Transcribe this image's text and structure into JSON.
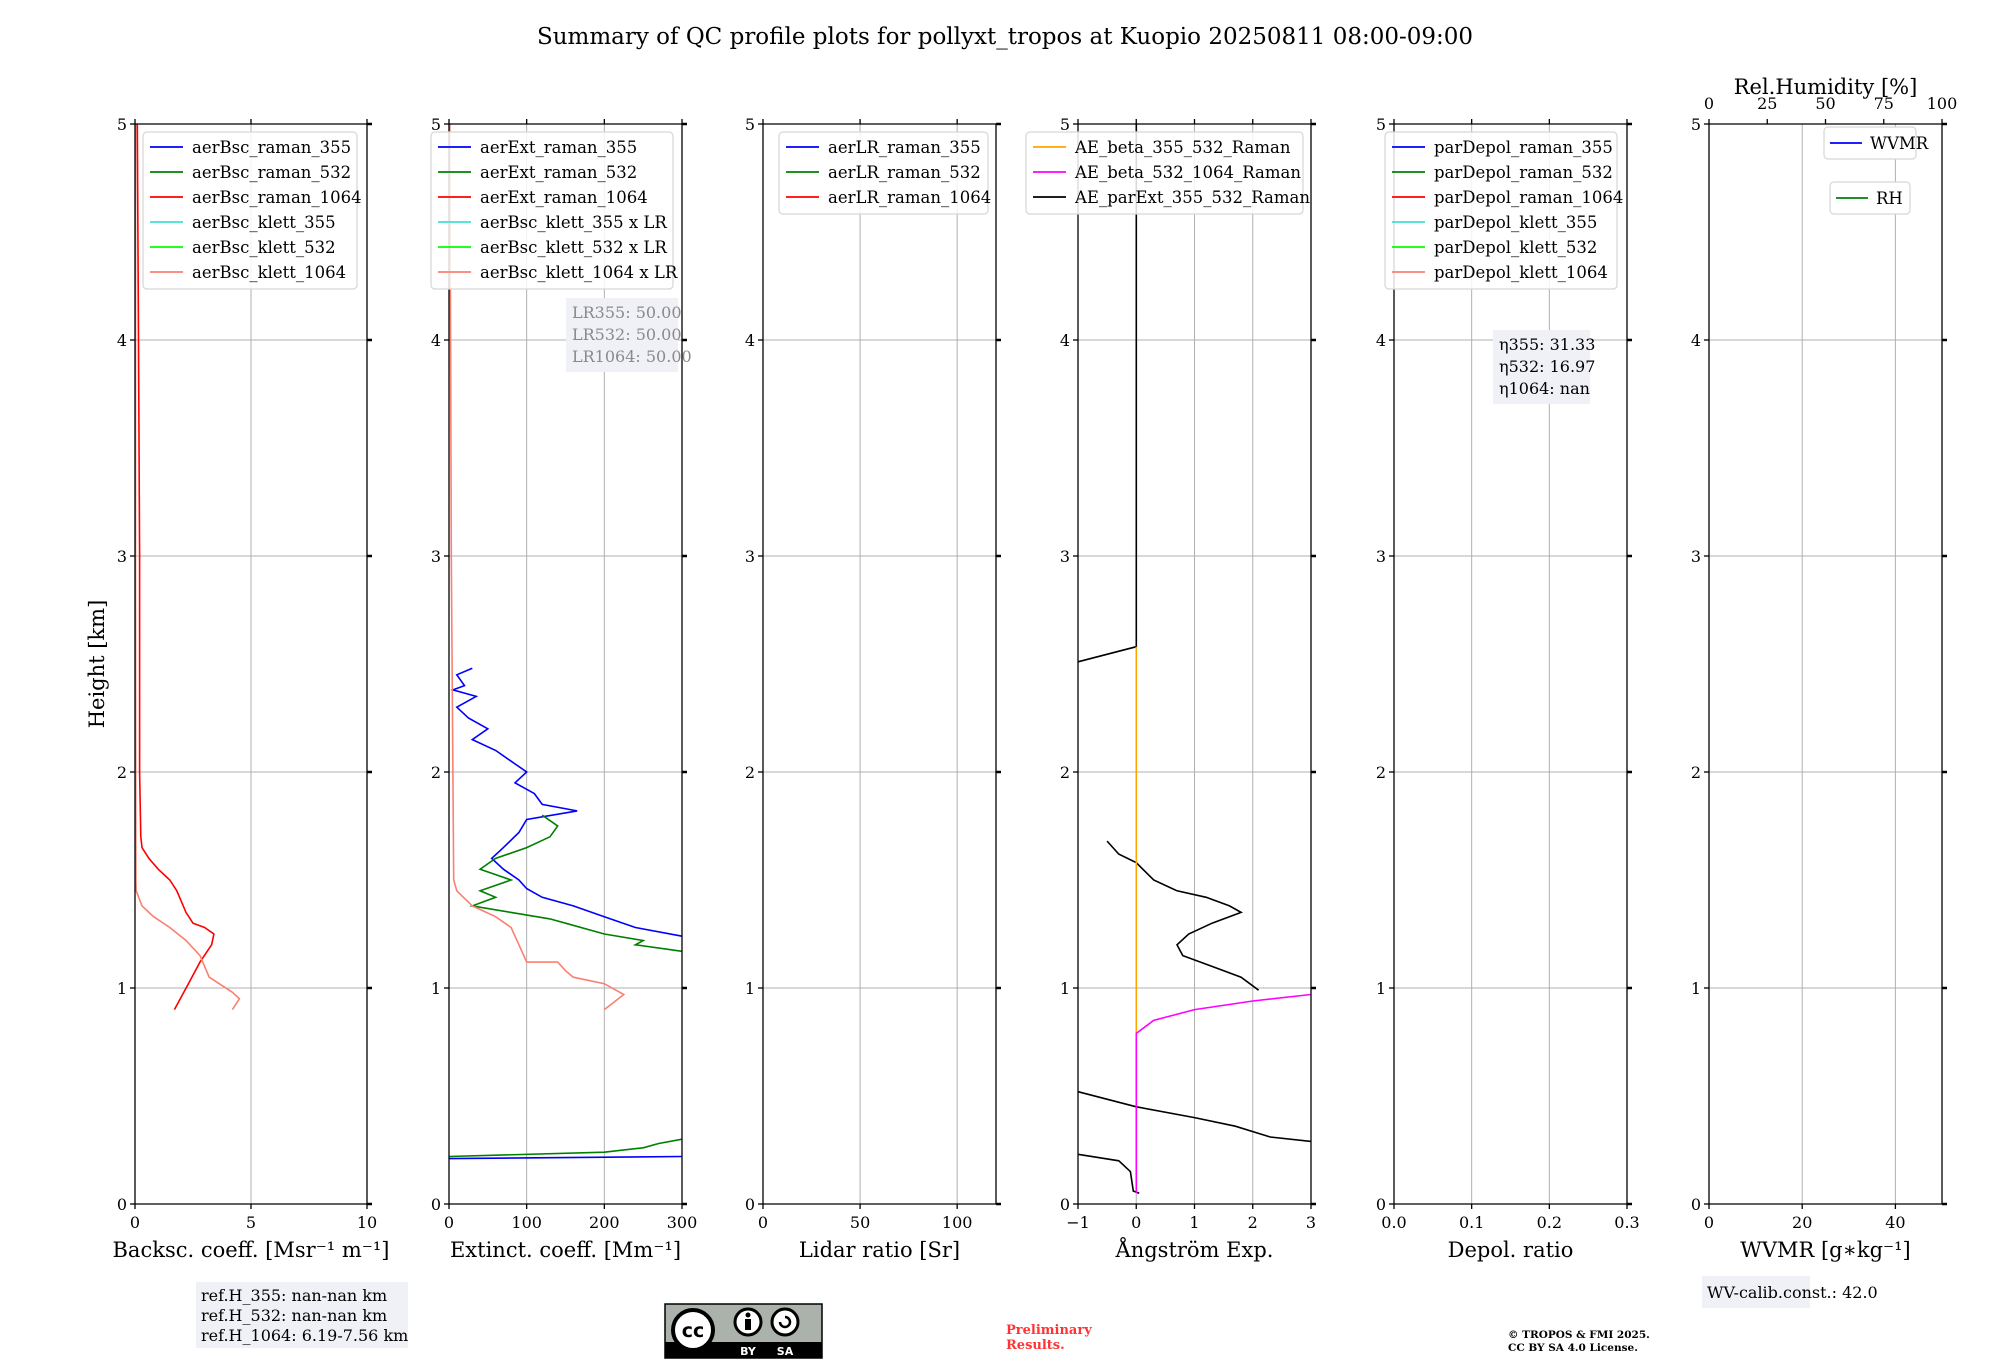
{
  "title": "Summary of QC profile plots for pollyxt_tropos at Kuopio 20250811 08:00-09:00",
  "ylabel": "Height [km]",
  "chart_data": [
    {
      "type": "line",
      "xlabel": "Backsc. coeff. [Msr⁻¹ m⁻¹]",
      "xlim": [
        0,
        10
      ],
      "ylim": [
        0,
        5
      ],
      "xticks": [
        0,
        5,
        10
      ],
      "xtick_labels": [
        "0",
        "5",
        "10"
      ],
      "yticks": [
        0,
        1,
        2,
        3,
        4,
        5
      ],
      "ytick_labels": [
        "0",
        "1",
        "2",
        "3",
        "4",
        "5"
      ],
      "grid": true,
      "legend": [
        {
          "label": "aerBsc_raman_355",
          "color": "#0000ff"
        },
        {
          "label": "aerBsc_raman_532",
          "color": "#008000"
        },
        {
          "label": "aerBsc_raman_1064",
          "color": "#ff0000"
        },
        {
          "label": "aerBsc_klett_355",
          "color": "#40e0d0"
        },
        {
          "label": "aerBsc_klett_532",
          "color": "#00ff00"
        },
        {
          "label": "aerBsc_klett_1064",
          "color": "#fa8072"
        }
      ],
      "series": [
        {
          "name": "aerBsc_raman_1064",
          "color": "#ff0000",
          "points": [
            [
              0.1,
              5
            ],
            [
              0.15,
              4
            ],
            [
              0.2,
              3
            ],
            [
              0.2,
              2
            ],
            [
              0.25,
              1.7
            ],
            [
              0.3,
              1.65
            ],
            [
              0.6,
              1.6
            ],
            [
              1.0,
              1.55
            ],
            [
              1.5,
              1.5
            ],
            [
              1.8,
              1.45
            ],
            [
              2.0,
              1.4
            ],
            [
              2.2,
              1.35
            ],
            [
              2.5,
              1.3
            ],
            [
              3.0,
              1.28
            ],
            [
              3.4,
              1.25
            ],
            [
              3.3,
              1.2
            ],
            [
              2.8,
              1.12
            ],
            [
              2.3,
              1.02
            ],
            [
              1.7,
              0.9
            ]
          ]
        },
        {
          "name": "aerBsc_klett_1064",
          "color": "#fa8072",
          "points": [
            [
              0.02,
              5
            ],
            [
              0.02,
              3
            ],
            [
              0.03,
              2
            ],
            [
              0.04,
              1.5
            ],
            [
              0.05,
              1.45
            ],
            [
              0.3,
              1.38
            ],
            [
              0.8,
              1.33
            ],
            [
              1.5,
              1.28
            ],
            [
              2.2,
              1.22
            ],
            [
              2.8,
              1.15
            ],
            [
              3.2,
              1.05
            ],
            [
              4.2,
              0.98
            ],
            [
              4.5,
              0.95
            ],
            [
              4.2,
              0.9
            ]
          ]
        }
      ]
    },
    {
      "type": "line",
      "xlabel": "Extinct. coeff. [Mm⁻¹]",
      "xlim": [
        0,
        300
      ],
      "ylim": [
        0,
        5
      ],
      "xticks": [
        0,
        100,
        200,
        300
      ],
      "xtick_labels": [
        "0",
        "100",
        "200",
        "300"
      ],
      "yticks": [
        0,
        1,
        2,
        3,
        4,
        5
      ],
      "ytick_labels": [
        "0",
        "1",
        "2",
        "3",
        "4",
        "5"
      ],
      "grid": true,
      "legend": [
        {
          "label": "aerExt_raman_355",
          "color": "#0000ff"
        },
        {
          "label": "aerExt_raman_532",
          "color": "#008000"
        },
        {
          "label": "aerExt_raman_1064",
          "color": "#ff0000"
        },
        {
          "label": "aerBsc_klett_355 x LR",
          "color": "#40e0d0"
        },
        {
          "label": "aerBsc_klett_532 x LR",
          "color": "#00ff00"
        },
        {
          "label": "aerBsc_klett_1064 x LR",
          "color": "#fa8072"
        }
      ],
      "annotation": [
        "LR355: 50.00",
        "LR532: 50.00",
        "LR1064: 50.00"
      ],
      "series": [
        {
          "name": "aerExt_raman_355",
          "color": "#0000ff",
          "points": [
            [
              30,
              2.48
            ],
            [
              10,
              2.45
            ],
            [
              20,
              2.4
            ],
            [
              5,
              2.38
            ],
            [
              35,
              2.35
            ],
            [
              10,
              2.3
            ],
            [
              25,
              2.25
            ],
            [
              50,
              2.2
            ],
            [
              30,
              2.15
            ],
            [
              60,
              2.1
            ],
            [
              80,
              2.05
            ],
            [
              100,
              2.0
            ],
            [
              85,
              1.95
            ],
            [
              110,
              1.9
            ],
            [
              120,
              1.85
            ],
            [
              165,
              1.82
            ],
            [
              100,
              1.78
            ],
            [
              90,
              1.72
            ],
            [
              70,
              1.65
            ],
            [
              55,
              1.6
            ],
            [
              70,
              1.55
            ],
            [
              90,
              1.5
            ],
            [
              100,
              1.46
            ],
            [
              120,
              1.42
            ],
            [
              160,
              1.38
            ],
            [
              200,
              1.33
            ],
            [
              240,
              1.28
            ],
            [
              300,
              1.24
            ]
          ]
        },
        {
          "name": "aerExt_raman_355_low",
          "color": "#0000ff",
          "points": [
            [
              0,
              0.21
            ],
            [
              300,
              0.22
            ]
          ]
        },
        {
          "name": "aerExt_raman_532",
          "color": "#008000",
          "points": [
            [
              120,
              1.8
            ],
            [
              140,
              1.75
            ],
            [
              130,
              1.7
            ],
            [
              100,
              1.65
            ],
            [
              60,
              1.6
            ],
            [
              40,
              1.55
            ],
            [
              80,
              1.5
            ],
            [
              40,
              1.45
            ],
            [
              60,
              1.42
            ],
            [
              30,
              1.38
            ],
            [
              80,
              1.35
            ],
            [
              130,
              1.32
            ],
            [
              150,
              1.3
            ],
            [
              200,
              1.25
            ],
            [
              250,
              1.22
            ],
            [
              240,
              1.2
            ],
            [
              300,
              1.17
            ]
          ]
        },
        {
          "name": "aerExt_raman_532_low",
          "color": "#008000",
          "points": [
            [
              0,
              0.22
            ],
            [
              200,
              0.24
            ],
            [
              250,
              0.26
            ],
            [
              270,
              0.28
            ],
            [
              300,
              0.3
            ]
          ]
        },
        {
          "name": "aerBsc_klett_1064 x LR",
          "color": "#fa8072",
          "points": [
            [
              1,
              5
            ],
            [
              2,
              4
            ],
            [
              3,
              3
            ],
            [
              5,
              2
            ],
            [
              6,
              1.5
            ],
            [
              10,
              1.45
            ],
            [
              30,
              1.38
            ],
            [
              60,
              1.33
            ],
            [
              80,
              1.28
            ],
            [
              90,
              1.2
            ],
            [
              100,
              1.12
            ],
            [
              140,
              1.12
            ],
            [
              150,
              1.08
            ],
            [
              160,
              1.05
            ],
            [
              200,
              1.02
            ],
            [
              225,
              0.97
            ],
            [
              200,
              0.9
            ]
          ]
        }
      ]
    },
    {
      "type": "line",
      "xlabel": "Lidar ratio [Sr]",
      "xlim": [
        0,
        120
      ],
      "ylim": [
        0,
        5
      ],
      "xticks": [
        0,
        50,
        100
      ],
      "xtick_labels": [
        "0",
        "50",
        "100"
      ],
      "yticks": [
        0,
        1,
        2,
        3,
        4,
        5
      ],
      "ytick_labels": [
        "0",
        "1",
        "2",
        "3",
        "4",
        "5"
      ],
      "grid": true,
      "legend": [
        {
          "label": "aerLR_raman_355",
          "color": "#0000ff"
        },
        {
          "label": "aerLR_raman_532",
          "color": "#008000"
        },
        {
          "label": "aerLR_raman_1064",
          "color": "#ff0000"
        }
      ],
      "series": []
    },
    {
      "type": "line",
      "xlabel": "Ångström Exp.",
      "xlim": [
        -1,
        3
      ],
      "ylim": [
        0,
        5
      ],
      "xticks": [
        -1,
        0,
        1,
        2,
        3
      ],
      "xtick_labels": [
        "−1",
        "0",
        "1",
        "2",
        "3"
      ],
      "yticks": [
        0,
        1,
        2,
        3,
        4,
        5
      ],
      "ytick_labels": [
        "0",
        "1",
        "2",
        "3",
        "4",
        "5"
      ],
      "grid": true,
      "legend": [
        {
          "label": "AE_beta_355_532_Raman",
          "color": "#ffa500"
        },
        {
          "label": "AE_beta_532_1064_Raman",
          "color": "#ff00ff"
        },
        {
          "label": "AE_parExt_355_532_Raman",
          "color": "#000000"
        }
      ],
      "series": [
        {
          "name": "AE_parExt_355_532_Raman_a",
          "color": "#000000",
          "points": [
            [
              0,
              5
            ],
            [
              0,
              2.58
            ],
            [
              -1,
              2.51
            ]
          ]
        },
        {
          "name": "AE_parExt_355_532_Raman_b",
          "color": "#000000",
          "points": [
            [
              -0.5,
              1.68
            ],
            [
              -0.3,
              1.62
            ],
            [
              0,
              1.58
            ],
            [
              0.3,
              1.5
            ],
            [
              0.7,
              1.45
            ],
            [
              1.2,
              1.42
            ],
            [
              1.6,
              1.38
            ],
            [
              1.8,
              1.35
            ],
            [
              1.3,
              1.3
            ],
            [
              0.9,
              1.25
            ],
            [
              0.7,
              1.2
            ],
            [
              0.8,
              1.15
            ],
            [
              1.3,
              1.1
            ],
            [
              1.8,
              1.05
            ],
            [
              2.1,
              0.99
            ]
          ]
        },
        {
          "name": "AE_parExt_355_532_Raman_c",
          "color": "#000000",
          "points": [
            [
              -1,
              0.52
            ],
            [
              0,
              0.45
            ],
            [
              1,
              0.4
            ],
            [
              1.7,
              0.36
            ],
            [
              2.3,
              0.31
            ],
            [
              3,
              0.29
            ]
          ]
        },
        {
          "name": "AE_parExt_355_532_Raman_d",
          "color": "#000000",
          "points": [
            [
              -1,
              0.23
            ],
            [
              -0.3,
              0.2
            ],
            [
              -0.1,
              0.15
            ],
            [
              -0.05,
              0.06
            ],
            [
              0.05,
              0.05
            ]
          ]
        },
        {
          "name": "AE_beta_355_532_Raman",
          "color": "#ffa500",
          "points": [
            [
              0,
              2.58
            ],
            [
              0,
              0.79
            ]
          ]
        },
        {
          "name": "AE_beta_532_1064_Raman",
          "color": "#ff00ff",
          "points": [
            [
              0,
              0.05
            ],
            [
              0,
              0.79
            ],
            [
              0.3,
              0.85
            ],
            [
              1,
              0.9
            ],
            [
              2,
              0.94
            ],
            [
              3,
              0.97
            ]
          ]
        }
      ]
    },
    {
      "type": "line",
      "xlabel": "Depol. ratio",
      "xlim": [
        0,
        0.3
      ],
      "ylim": [
        0,
        5
      ],
      "xticks": [
        0,
        0.1,
        0.2,
        0.3
      ],
      "xtick_labels": [
        "0.0",
        "0.1",
        "0.2",
        "0.3"
      ],
      "yticks": [
        0,
        1,
        2,
        3,
        4,
        5
      ],
      "ytick_labels": [
        "0",
        "1",
        "2",
        "3",
        "4",
        "5"
      ],
      "grid": true,
      "legend": [
        {
          "label": "parDepol_raman_355",
          "color": "#0000ff"
        },
        {
          "label": "parDepol_raman_532",
          "color": "#008000"
        },
        {
          "label": "parDepol_raman_1064",
          "color": "#ff0000"
        },
        {
          "label": "parDepol_klett_355",
          "color": "#40e0d0"
        },
        {
          "label": "parDepol_klett_532",
          "color": "#00ff00"
        },
        {
          "label": "parDepol_klett_1064",
          "color": "#fa8072"
        }
      ],
      "annotation": [
        "η355: 31.33",
        "η532: 16.97",
        "η1064: nan"
      ],
      "series": []
    },
    {
      "type": "line",
      "xlabel": "WVMR [g∗kg⁻¹]",
      "xlim": [
        0,
        50
      ],
      "ylim": [
        0,
        5
      ],
      "xticks": [
        0,
        20,
        40
      ],
      "xtick_labels": [
        "0",
        "20",
        "40"
      ],
      "yticks": [
        0,
        1,
        2,
        3,
        4,
        5
      ],
      "ytick_labels": [
        "0",
        "1",
        "2",
        "3",
        "4",
        "5"
      ],
      "grid": true,
      "top_axis": {
        "label": "Rel.Humidity [%]",
        "xlim": [
          0,
          100
        ],
        "xticks": [
          0,
          25,
          50,
          75,
          100
        ],
        "xtick_labels": [
          "0",
          "25",
          "50",
          "75",
          "100"
        ]
      },
      "legend": [
        {
          "label": "WVMR",
          "color": "#0000ff"
        },
        {
          "label": "RH",
          "color": "#008000"
        }
      ],
      "series": []
    }
  ],
  "footer": {
    "refH": [
      "ref.H_355: nan-nan km",
      "ref.H_532: nan-nan km",
      "ref.H_1064: 6.19-7.56 km"
    ],
    "wv_calib": "WV-calib.const.: 42.0",
    "preliminary": [
      "Preliminary",
      "Results."
    ],
    "copyright": [
      "© TROPOS & FMI 2025.",
      "CC BY SA 4.0 License."
    ],
    "license_logo": {
      "cc": "cc",
      "by": "BY",
      "sa": "SA"
    }
  }
}
